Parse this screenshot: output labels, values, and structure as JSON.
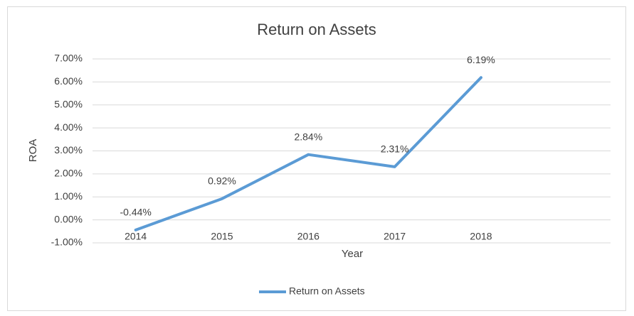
{
  "chart_data": {
    "type": "line",
    "title": "Return on Assets",
    "x_label": "Year",
    "y_label": "ROA",
    "categories": [
      "2014",
      "2015",
      "2016",
      "2017",
      "2018",
      null
    ],
    "series": [
      {
        "name": "Return on Assets",
        "color": "#5b9bd5",
        "values": [
          -0.44,
          0.92,
          2.84,
          2.31,
          6.19,
          null
        ],
        "value_labels": [
          "-0.44%",
          "0.92%",
          "2.84%",
          "2.31%",
          "6.19%",
          null
        ]
      }
    ],
    "ylim": [
      -1,
      7
    ],
    "yticks": [
      {
        "value": -1,
        "label": "-1.00%"
      },
      {
        "value": 0,
        "label": "0.00%"
      },
      {
        "value": 1,
        "label": "1.00%"
      },
      {
        "value": 2,
        "label": "2.00%"
      },
      {
        "value": 3,
        "label": "3.00%"
      },
      {
        "value": 4,
        "label": "4.00%"
      },
      {
        "value": 5,
        "label": "5.00%"
      },
      {
        "value": 6,
        "label": "6.00%"
      },
      {
        "value": 7,
        "label": "7.00%"
      }
    ],
    "grid": true,
    "legend": "bottom"
  }
}
